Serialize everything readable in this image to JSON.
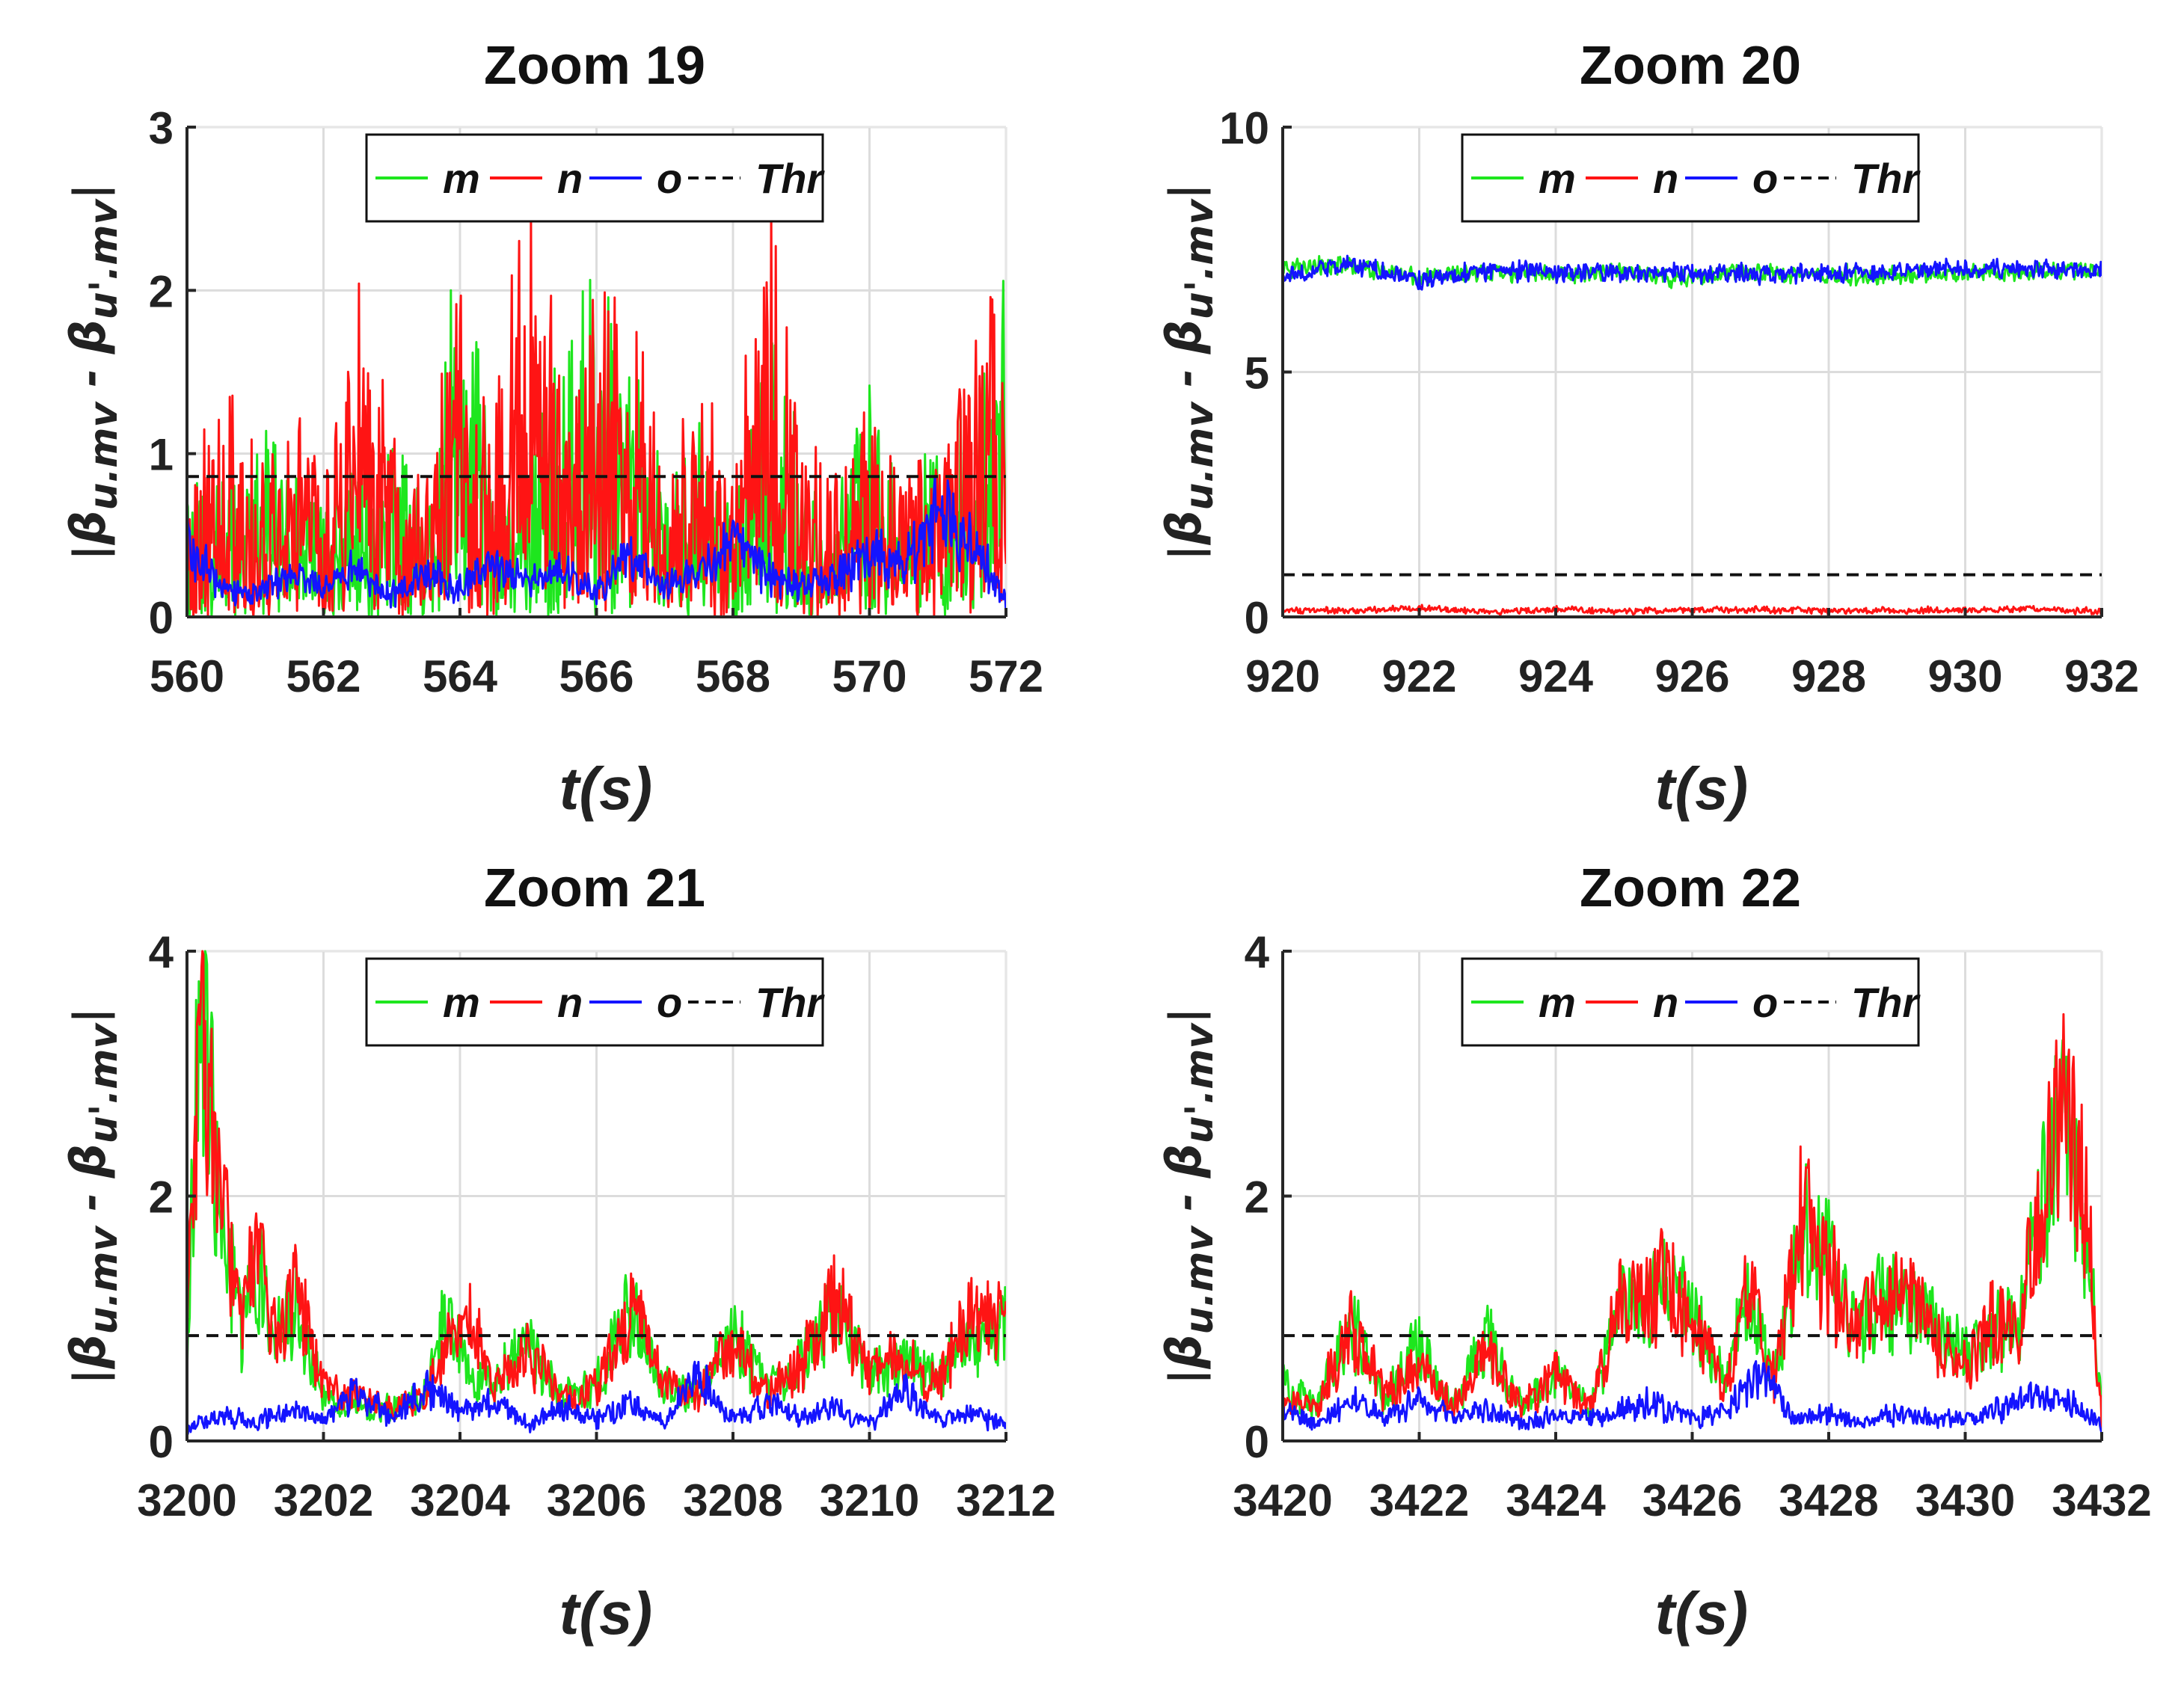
{
  "figure": {
    "y_label_parts": [
      "|",
      "β",
      "u.mv",
      " - ",
      "β",
      "u'.mv",
      "|"
    ],
    "x_label": "t(s)"
  },
  "legend": {
    "entries": [
      {
        "name": "m",
        "color": "#1ee61e",
        "style": "solid"
      },
      {
        "name": "n",
        "color": "#ff1414",
        "style": "solid"
      },
      {
        "name": "o",
        "color": "#1414ff",
        "style": "solid"
      },
      {
        "name": "Thr",
        "color": "#111111",
        "style": "dashed"
      }
    ]
  },
  "chart_data": [
    {
      "type": "line",
      "title": "Zoom 19",
      "xlabel": "t(s)",
      "ylabel": "|β u.mv - β u'.mv|",
      "xlim": [
        560,
        572
      ],
      "ylim": [
        0,
        3
      ],
      "xticks": [
        "560",
        "562",
        "564",
        "566",
        "568",
        "570",
        "572"
      ],
      "yticks": [
        "0",
        "1",
        "2",
        "3"
      ],
      "legend_position": "top-center",
      "threshold": 0.86,
      "series": [
        {
          "name": "m",
          "color": "#1ee61e",
          "x": [
            560,
            560.5,
            561,
            561.5,
            562,
            562.5,
            563,
            563.5,
            564,
            564.5,
            565,
            565.5,
            566,
            566.5,
            567,
            567.5,
            568,
            568.5,
            569,
            569.5,
            570,
            570.5,
            571,
            571.5,
            572
          ],
          "values": [
            0.6,
            0.7,
            0.9,
            1.05,
            0.5,
            0.8,
            0.95,
            0.5,
            1.95,
            0.6,
            0.7,
            1.3,
            1.6,
            1.6,
            0.7,
            0.9,
            0.6,
            1.45,
            0.8,
            0.7,
            1.15,
            0.6,
            0.9,
            1.0,
            1.95
          ]
        },
        {
          "name": "n",
          "color": "#ff1414",
          "x": [
            560,
            560.5,
            561,
            561.5,
            562,
            562.5,
            563,
            563.5,
            564,
            564.5,
            565,
            565.5,
            566,
            566.5,
            567,
            567.5,
            568,
            568.5,
            569,
            569.5,
            570,
            570.5,
            571,
            571.5,
            572
          ],
          "values": [
            0.7,
            1.2,
            0.8,
            1.45,
            0.6,
            1.8,
            1.0,
            0.7,
            1.9,
            0.9,
            2.4,
            1.3,
            1.55,
            1.6,
            0.8,
            1.2,
            0.8,
            2.2,
            0.9,
            0.7,
            1.0,
            0.7,
            0.8,
            1.35,
            1.9
          ]
        },
        {
          "name": "o",
          "color": "#1414ff",
          "x": [
            560,
            560.5,
            561,
            561.5,
            562,
            562.5,
            563,
            563.5,
            564,
            564.5,
            565,
            565.5,
            566,
            566.5,
            567,
            567.5,
            568,
            568.5,
            569,
            569.5,
            570,
            570.5,
            571,
            571.5,
            572
          ],
          "values": [
            0.5,
            0.2,
            0.15,
            0.3,
            0.2,
            0.35,
            0.15,
            0.3,
            0.2,
            0.35,
            0.25,
            0.3,
            0.15,
            0.45,
            0.2,
            0.3,
            0.5,
            0.3,
            0.2,
            0.25,
            0.45,
            0.35,
            0.7,
            0.5,
            0.1
          ]
        }
      ]
    },
    {
      "type": "line",
      "title": "Zoom 20",
      "xlabel": "t(s)",
      "ylabel": "|β u.mv - β u'.mv|",
      "xlim": [
        920,
        932
      ],
      "ylim": [
        0,
        10
      ],
      "xticks": [
        "920",
        "922",
        "924",
        "926",
        "928",
        "930",
        "932"
      ],
      "yticks": [
        "0",
        "5",
        "10"
      ],
      "legend_position": "top-center",
      "threshold": 0.86,
      "series": [
        {
          "name": "m",
          "color": "#1ee61e",
          "x": [
            920,
            921,
            922,
            923,
            924,
            925,
            926,
            927,
            928,
            929,
            930,
            931,
            932
          ],
          "values": [
            7.1,
            7.2,
            6.95,
            7.05,
            7.0,
            7.05,
            6.9,
            7.05,
            6.95,
            7.0,
            7.0,
            7.05,
            7.1
          ]
        },
        {
          "name": "n",
          "color": "#ff1414",
          "x": [
            920,
            921,
            922,
            923,
            924,
            925,
            926,
            927,
            928,
            929,
            930,
            931,
            932
          ],
          "values": [
            0.15,
            0.12,
            0.18,
            0.1,
            0.15,
            0.12,
            0.14,
            0.15,
            0.12,
            0.13,
            0.15,
            0.16,
            0.12
          ]
        },
        {
          "name": "o",
          "color": "#1414ff",
          "x": [
            920,
            921,
            922,
            923,
            924,
            925,
            926,
            927,
            928,
            929,
            930,
            931,
            932
          ],
          "values": [
            7.0,
            7.2,
            6.9,
            7.05,
            7.05,
            7.0,
            7.0,
            7.0,
            7.0,
            7.05,
            7.1,
            7.1,
            7.1
          ]
        }
      ]
    },
    {
      "type": "line",
      "title": "Zoom 21",
      "xlabel": "t(s)",
      "ylabel": "|β u.mv - β u'.mv|",
      "xlim": [
        3200,
        3212
      ],
      "ylim": [
        0,
        4
      ],
      "xticks": [
        "3200",
        "3202",
        "3204",
        "3206",
        "3208",
        "3210",
        "3212"
      ],
      "yticks": [
        "0",
        "2",
        "4"
      ],
      "legend_position": "top-center",
      "threshold": 0.86,
      "series": [
        {
          "name": "m",
          "color": "#1ee61e",
          "x": [
            3200,
            3200.2,
            3200.5,
            3200.8,
            3201,
            3201.3,
            3201.6,
            3202,
            3202.5,
            3203,
            3203.5,
            3203.8,
            3204.2,
            3204.5,
            3205,
            3205.5,
            3206,
            3206.5,
            3207,
            3207.5,
            3208,
            3208.5,
            3209,
            3209.5,
            3210,
            3210.5,
            3211,
            3211.5,
            3212
          ],
          "values": [
            0.9,
            3.9,
            2.0,
            1.0,
            1.7,
            0.9,
            1.2,
            0.4,
            0.3,
            0.3,
            0.4,
            1.2,
            0.6,
            0.5,
            0.9,
            0.4,
            0.5,
            1.2,
            0.5,
            0.4,
            1.0,
            0.5,
            0.7,
            1.2,
            0.6,
            0.7,
            0.6,
            0.9,
            1.05
          ]
        },
        {
          "name": "n",
          "color": "#ff1414",
          "x": [
            3200,
            3200.2,
            3200.5,
            3200.8,
            3201,
            3201.3,
            3201.6,
            3202,
            3202.5,
            3203,
            3203.5,
            3203.8,
            3204.2,
            3204.5,
            3205,
            3205.5,
            3206,
            3206.5,
            3207,
            3207.5,
            3208,
            3208.5,
            3209,
            3209.5,
            3210,
            3210.5,
            3211,
            3211.5,
            3212
          ],
          "values": [
            1.0,
            4.0,
            2.2,
            1.0,
            1.75,
            0.9,
            1.35,
            0.5,
            0.4,
            0.3,
            0.4,
            0.9,
            1.05,
            0.5,
            0.8,
            0.4,
            0.5,
            1.2,
            0.5,
            0.4,
            0.9,
            0.4,
            0.7,
            1.3,
            0.6,
            0.8,
            0.5,
            1.2,
            1.05
          ]
        },
        {
          "name": "o",
          "color": "#1414ff",
          "x": [
            3200,
            3200.5,
            3201,
            3201.5,
            3202,
            3202.5,
            3203,
            3203.5,
            3204,
            3204.5,
            3205,
            3205.5,
            3206,
            3206.5,
            3207,
            3207.5,
            3208,
            3208.5,
            3209,
            3209.5,
            3210,
            3210.5,
            3211,
            3211.5,
            3212
          ],
          "values": [
            0.1,
            0.25,
            0.15,
            0.3,
            0.2,
            0.45,
            0.2,
            0.5,
            0.25,
            0.35,
            0.15,
            0.3,
            0.2,
            0.35,
            0.15,
            0.6,
            0.2,
            0.35,
            0.2,
            0.3,
            0.15,
            0.45,
            0.2,
            0.25,
            0.15
          ]
        }
      ]
    },
    {
      "type": "line",
      "title": "Zoom 22",
      "xlabel": "t(s)",
      "ylabel": "|β u.mv - β u'.mv|",
      "xlim": [
        3420,
        3432
      ],
      "ylim": [
        0,
        4
      ],
      "xticks": [
        "3420",
        "3422",
        "3424",
        "3426",
        "3428",
        "3430",
        "3432"
      ],
      "yticks": [
        "0",
        "2",
        "4"
      ],
      "legend_position": "top-center",
      "threshold": 0.86,
      "series": [
        {
          "name": "m",
          "color": "#1ee61e",
          "x": [
            3420,
            3420.5,
            3421,
            3421.5,
            3422,
            3422.5,
            3423,
            3423.5,
            3424,
            3424.5,
            3425,
            3425.3,
            3425.6,
            3426,
            3426.5,
            3426.8,
            3427.2,
            3427.6,
            3428,
            3428.4,
            3428.8,
            3429.2,
            3429.6,
            3430,
            3430.4,
            3430.8,
            3431.2,
            3431.5,
            3431.8,
            3432
          ],
          "values": [
            0.5,
            0.3,
            1.05,
            0.4,
            0.9,
            0.3,
            0.95,
            0.3,
            0.6,
            0.3,
            1.4,
            1.2,
            1.4,
            1.2,
            0.5,
            1.4,
            0.6,
            2.0,
            1.6,
            1.0,
            1.3,
            1.2,
            1.0,
            0.8,
            1.0,
            1.1,
            2.4,
            2.8,
            1.9,
            0.2
          ]
        },
        {
          "name": "n",
          "color": "#ff1414",
          "x": [
            3420,
            3420.5,
            3421,
            3421.5,
            3422,
            3422.5,
            3423,
            3423.5,
            3424,
            3424.5,
            3425,
            3425.3,
            3425.6,
            3426,
            3426.5,
            3426.8,
            3427.2,
            3427.6,
            3428,
            3428.4,
            3428.8,
            3429.2,
            3429.6,
            3430,
            3430.4,
            3430.8,
            3431.2,
            3431.5,
            3431.8,
            3432
          ],
          "values": [
            0.4,
            0.3,
            1.1,
            0.4,
            0.7,
            0.3,
            0.8,
            0.3,
            0.6,
            0.3,
            1.45,
            1.2,
            1.45,
            1.1,
            0.5,
            1.45,
            0.6,
            2.05,
            1.5,
            1.0,
            1.2,
            1.25,
            0.9,
            0.7,
            1.1,
            1.0,
            2.5,
            3.1,
            2.0,
            0.2
          ]
        },
        {
          "name": "o",
          "color": "#1414ff",
          "x": [
            3420,
            3420.5,
            3421,
            3421.5,
            3422,
            3422.5,
            3423,
            3423.5,
            3424,
            3424.5,
            3425,
            3425.5,
            3426,
            3426.5,
            3427,
            3427.5,
            3428,
            3428.5,
            3429,
            3429.5,
            3430,
            3430.5,
            3431,
            3431.5,
            3432
          ],
          "values": [
            0.3,
            0.15,
            0.35,
            0.2,
            0.4,
            0.2,
            0.3,
            0.15,
            0.25,
            0.2,
            0.3,
            0.35,
            0.2,
            0.3,
            0.6,
            0.2,
            0.25,
            0.15,
            0.25,
            0.2,
            0.2,
            0.3,
            0.4,
            0.35,
            0.15
          ]
        }
      ]
    }
  ]
}
